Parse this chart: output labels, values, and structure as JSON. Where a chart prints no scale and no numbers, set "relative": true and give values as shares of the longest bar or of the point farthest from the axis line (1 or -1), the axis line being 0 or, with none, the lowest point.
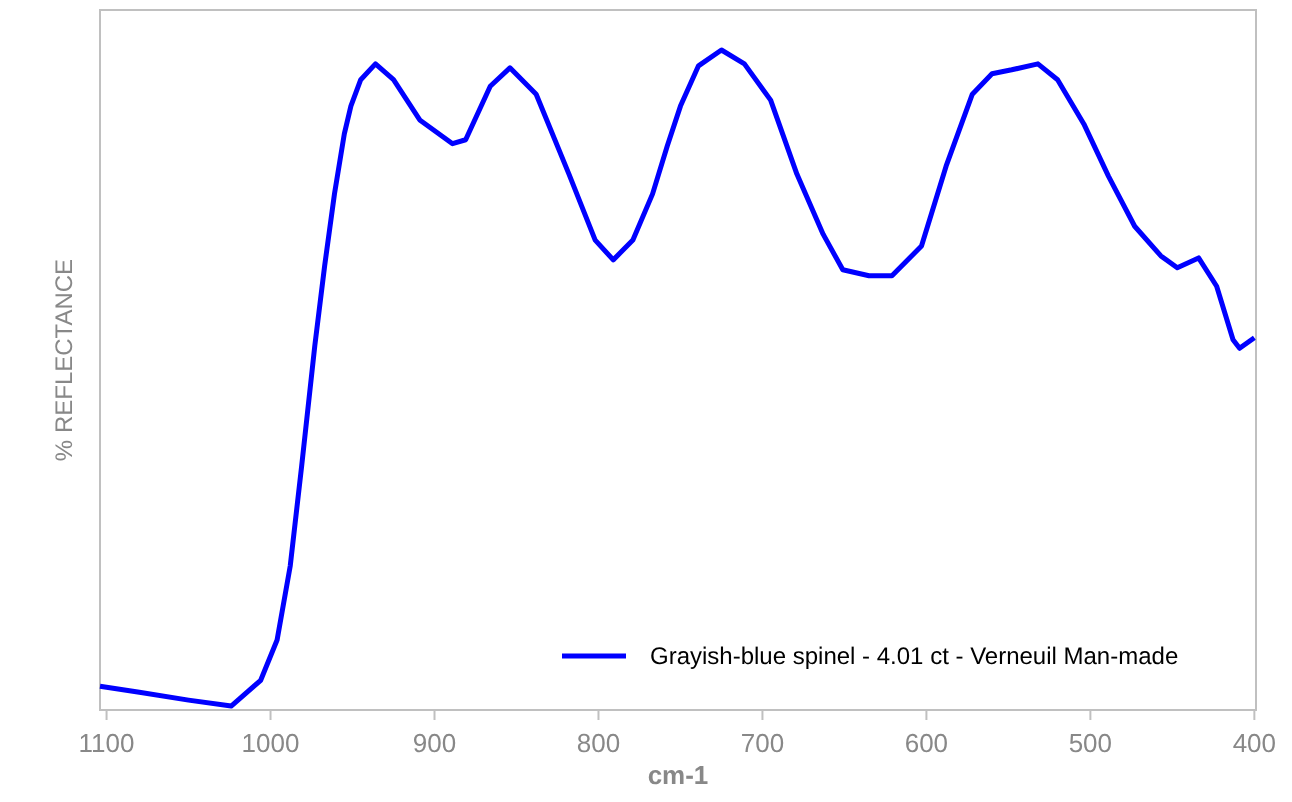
{
  "chart_data": {
    "type": "line",
    "relative": true,
    "xlabel": "cm-1",
    "ylabel": "% REFLECTANCE",
    "xlim": [
      1104,
      399
    ],
    "xticks": [
      1100,
      1000,
      900,
      800,
      700,
      600,
      500,
      400
    ],
    "grid": false,
    "legend": "bottom right",
    "line_style": "solid",
    "marker": "none",
    "series": [
      {
        "name": "Grayish-blue spinel - 4.01 ct - Verneuil Man-made",
        "color": "#0000ff",
        "x": [
          1104,
          1080,
          1050,
          1024,
          1006,
          996,
          988,
          981,
          973,
          967,
          961,
          955,
          951,
          945,
          936,
          925,
          909,
          889,
          881,
          866,
          854,
          838,
          818,
          802,
          791,
          779,
          767,
          758,
          750,
          739,
          725,
          711,
          695,
          679,
          663,
          651,
          635,
          621,
          603,
          588,
          572,
          560,
          548,
          532,
          520,
          504,
          489,
          473,
          457,
          447,
          434,
          423,
          413,
          409,
          400
        ],
        "values": [
          0.036,
          0.027,
          0.015,
          0.006,
          0.045,
          0.106,
          0.218,
          0.37,
          0.552,
          0.673,
          0.782,
          0.873,
          0.915,
          0.955,
          0.979,
          0.955,
          0.894,
          0.858,
          0.864,
          0.945,
          0.973,
          0.933,
          0.812,
          0.712,
          0.682,
          0.712,
          0.782,
          0.855,
          0.915,
          0.976,
          1,
          0.979,
          0.924,
          0.812,
          0.721,
          0.667,
          0.658,
          0.658,
          0.703,
          0.824,
          0.933,
          0.964,
          0.97,
          0.979,
          0.955,
          0.888,
          0.809,
          0.733,
          0.688,
          0.67,
          0.685,
          0.642,
          0.561,
          0.548,
          0.564
        ]
      }
    ]
  }
}
